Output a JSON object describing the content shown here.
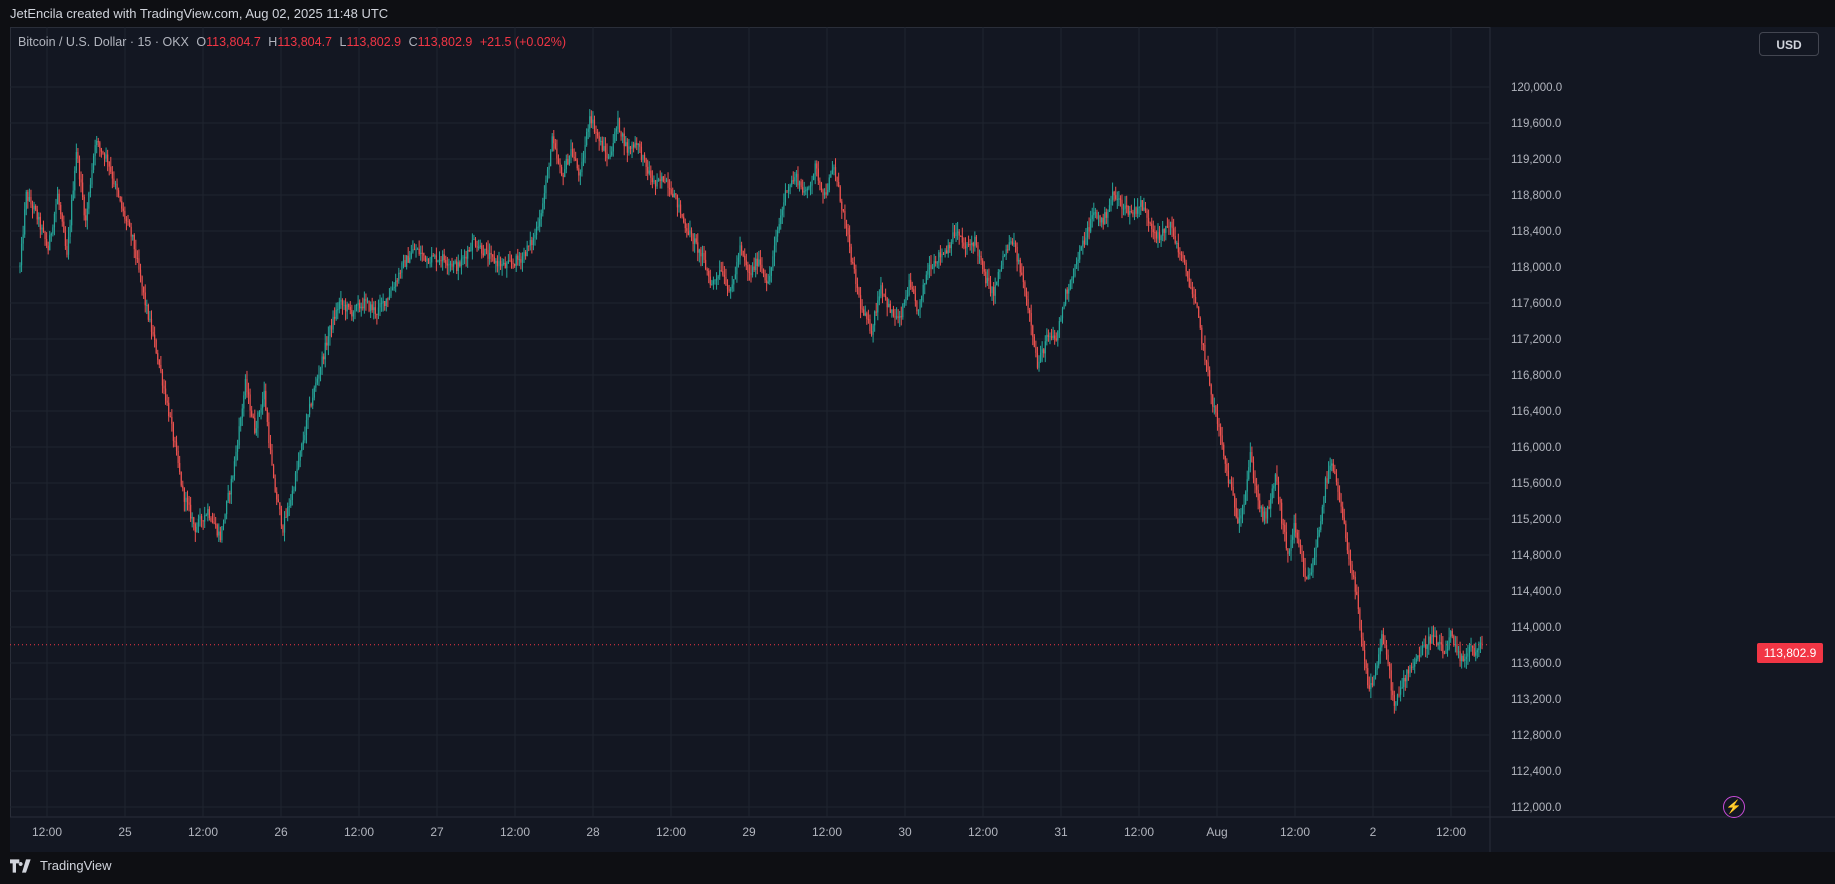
{
  "header": {
    "credit": "JetEncila created with TradingView.com, Aug 02, 2025 11:48 UTC"
  },
  "legend": {
    "symbol": "Bitcoin / U.S. Dollar · 15 · OKX",
    "open_label": "O",
    "open": "113,804.7",
    "high_label": "H",
    "high": "113,804.7",
    "low_label": "L",
    "low": "113,802.9",
    "close_label": "C",
    "close": "113,802.9",
    "change": "+21.5 (+0.02%)"
  },
  "currency_button": "USD",
  "last_price_label": "113,802.9",
  "footer": {
    "brand": "TradingView"
  },
  "colors": {
    "background": "#131722",
    "grid": "#1f2430",
    "up": "#26a69a",
    "down": "#ef5350",
    "last_price": "#f23645",
    "axis_text": "#b2b5be"
  },
  "icons": [
    "lightning-bolt-icon",
    "tradingview-logo-icon"
  ],
  "chart_data": {
    "type": "candlestick",
    "symbol": "Bitcoin / U.S. Dollar",
    "interval": "15",
    "exchange": "OKX",
    "ylim": [
      112000,
      120300
    ],
    "yticks": [
      "120,000.0",
      "119,600.0",
      "119,200.0",
      "118,800.0",
      "118,400.0",
      "118,000.0",
      "117,600.0",
      "117,200.0",
      "116,800.0",
      "116,400.0",
      "116,000.0",
      "115,600.0",
      "115,200.0",
      "114,800.0",
      "114,400.0",
      "114,000.0",
      "113,600.0",
      "113,200.0",
      "112,800.0",
      "112,400.0",
      "112,000.0"
    ],
    "xticks": [
      "12:00",
      "25",
      "12:00",
      "26",
      "12:00",
      "27",
      "12:00",
      "28",
      "12:00",
      "29",
      "12:00",
      "30",
      "12:00",
      "31",
      "12:00",
      "Aug",
      "12:00",
      "2",
      "12:00"
    ],
    "last_price": 113802.9,
    "price_path": [
      [
        0,
        118000
      ],
      [
        4,
        118800
      ],
      [
        10,
        118600
      ],
      [
        18,
        118200
      ],
      [
        24,
        118800
      ],
      [
        30,
        118100
      ],
      [
        36,
        119300
      ],
      [
        42,
        118500
      ],
      [
        48,
        119400
      ],
      [
        56,
        119200
      ],
      [
        64,
        118700
      ],
      [
        72,
        118300
      ],
      [
        80,
        117600
      ],
      [
        88,
        117000
      ],
      [
        96,
        116300
      ],
      [
        104,
        115500
      ],
      [
        112,
        115100
      ],
      [
        120,
        115300
      ],
      [
        128,
        115000
      ],
      [
        136,
        115700
      ],
      [
        144,
        116700
      ],
      [
        150,
        116200
      ],
      [
        156,
        116600
      ],
      [
        162,
        115600
      ],
      [
        168,
        115100
      ],
      [
        174,
        115500
      ],
      [
        180,
        116000
      ],
      [
        186,
        116500
      ],
      [
        192,
        116900
      ],
      [
        198,
        117300
      ],
      [
        204,
        117600
      ],
      [
        212,
        117500
      ],
      [
        220,
        117600
      ],
      [
        228,
        117500
      ],
      [
        236,
        117700
      ],
      [
        244,
        118000
      ],
      [
        252,
        118200
      ],
      [
        260,
        118100
      ],
      [
        270,
        118100
      ],
      [
        280,
        118000
      ],
      [
        290,
        118300
      ],
      [
        300,
        118100
      ],
      [
        310,
        118000
      ],
      [
        320,
        118100
      ],
      [
        328,
        118300
      ],
      [
        334,
        118700
      ],
      [
        340,
        119400
      ],
      [
        346,
        119000
      ],
      [
        352,
        119300
      ],
      [
        358,
        119000
      ],
      [
        364,
        119700
      ],
      [
        370,
        119400
      ],
      [
        376,
        119200
      ],
      [
        382,
        119600
      ],
      [
        388,
        119300
      ],
      [
        394,
        119400
      ],
      [
        400,
        119100
      ],
      [
        406,
        118900
      ],
      [
        412,
        119000
      ],
      [
        418,
        118800
      ],
      [
        424,
        118500
      ],
      [
        430,
        118300
      ],
      [
        436,
        118100
      ],
      [
        442,
        117800
      ],
      [
        448,
        118000
      ],
      [
        454,
        117700
      ],
      [
        460,
        118200
      ],
      [
        466,
        117900
      ],
      [
        472,
        118100
      ],
      [
        478,
        117800
      ],
      [
        484,
        118400
      ],
      [
        490,
        118900
      ],
      [
        496,
        119000
      ],
      [
        502,
        118800
      ],
      [
        508,
        119100
      ],
      [
        514,
        118800
      ],
      [
        520,
        119100
      ],
      [
        526,
        118600
      ],
      [
        532,
        118000
      ],
      [
        538,
        117500
      ],
      [
        544,
        117300
      ],
      [
        550,
        117800
      ],
      [
        556,
        117500
      ],
      [
        562,
        117400
      ],
      [
        568,
        117800
      ],
      [
        574,
        117500
      ],
      [
        580,
        118000
      ],
      [
        586,
        118100
      ],
      [
        592,
        118200
      ],
      [
        598,
        118400
      ],
      [
        604,
        118200
      ],
      [
        610,
        118300
      ],
      [
        616,
        117900
      ],
      [
        622,
        117700
      ],
      [
        628,
        118100
      ],
      [
        634,
        118300
      ],
      [
        640,
        117900
      ],
      [
        646,
        117400
      ],
      [
        650,
        116900
      ],
      [
        656,
        117200
      ],
      [
        662,
        117200
      ],
      [
        668,
        117700
      ],
      [
        674,
        118000
      ],
      [
        680,
        118300
      ],
      [
        686,
        118600
      ],
      [
        692,
        118500
      ],
      [
        698,
        118800
      ],
      [
        704,
        118700
      ],
      [
        710,
        118600
      ],
      [
        716,
        118700
      ],
      [
        722,
        118500
      ],
      [
        728,
        118300
      ],
      [
        734,
        118500
      ],
      [
        740,
        118200
      ],
      [
        746,
        117900
      ],
      [
        752,
        117500
      ],
      [
        758,
        116900
      ],
      [
        762,
        116500
      ],
      [
        766,
        116200
      ],
      [
        770,
        115800
      ],
      [
        774,
        115500
      ],
      [
        778,
        115200
      ],
      [
        782,
        115400
      ],
      [
        786,
        115900
      ],
      [
        790,
        115500
      ],
      [
        794,
        115200
      ],
      [
        798,
        115300
      ],
      [
        802,
        115700
      ],
      [
        806,
        115200
      ],
      [
        810,
        114800
      ],
      [
        814,
        115100
      ],
      [
        818,
        114800
      ],
      [
        822,
        114500
      ],
      [
        826,
        114700
      ],
      [
        830,
        115100
      ],
      [
        834,
        115600
      ],
      [
        838,
        115800
      ],
      [
        842,
        115500
      ],
      [
        846,
        115100
      ],
      [
        850,
        114700
      ],
      [
        854,
        114300
      ],
      [
        858,
        113700
      ],
      [
        862,
        113300
      ],
      [
        866,
        113500
      ],
      [
        870,
        113900
      ],
      [
        874,
        113600
      ],
      [
        878,
        113100
      ],
      [
        882,
        113300
      ],
      [
        886,
        113500
      ],
      [
        890,
        113600
      ],
      [
        894,
        113700
      ],
      [
        898,
        113800
      ],
      [
        902,
        113900
      ],
      [
        906,
        113800
      ],
      [
        910,
        113700
      ],
      [
        914,
        113900
      ],
      [
        918,
        113700
      ],
      [
        922,
        113600
      ],
      [
        926,
        113800
      ],
      [
        930,
        113700
      ],
      [
        934,
        113800
      ]
    ]
  }
}
